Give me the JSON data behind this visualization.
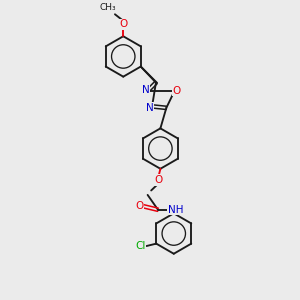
{
  "background_color": "#ebebeb",
  "bond_color": "#1a1a1a",
  "atom_colors": {
    "O": "#e8000d",
    "N": "#0000cc",
    "Cl": "#00aa00",
    "C": "#1a1a1a",
    "H": "#555555"
  },
  "figsize": [
    3.0,
    3.0
  ],
  "dpi": 100,
  "xlim": [
    0,
    10
  ],
  "ylim": [
    0,
    10
  ]
}
